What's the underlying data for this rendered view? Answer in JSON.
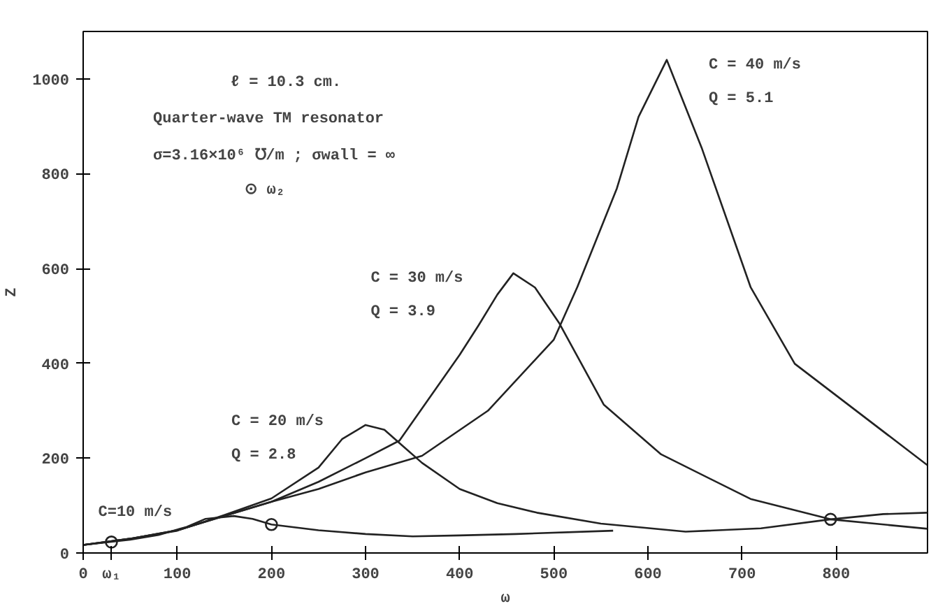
{
  "chart_data": {
    "type": "line",
    "xlabel": "ω",
    "ylabel": "Z",
    "xlim": [
      0,
      897
    ],
    "ylim": [
      0,
      1100
    ],
    "xticks": [
      0,
      {
        "value": 30,
        "label": "ω₁"
      },
      100,
      200,
      300,
      400,
      500,
      600,
      700,
      800
    ],
    "yticks": [
      0,
      200,
      400,
      600,
      800,
      1000
    ],
    "grid": false,
    "legend": false,
    "marker": "none",
    "line_style": "solid",
    "series": [
      {
        "name": "C=10 m/s",
        "color": "#222222",
        "x": [
          0,
          50,
          80,
          110,
          130,
          160,
          180,
          200,
          250,
          300,
          350,
          400,
          460,
          563
        ],
        "values": [
          17,
          28,
          38,
          55,
          72,
          78,
          72,
          60,
          48,
          40,
          35,
          37,
          40,
          47
        ]
      },
      {
        "name": "C = 20 m/s\nQ = 2.8",
        "color": "#222222",
        "x": [
          0,
          50,
          100,
          150,
          200,
          250,
          275,
          300,
          320,
          340,
          360,
          400,
          440,
          482,
          550,
          640,
          720,
          794,
          850,
          897
        ],
        "values": [
          17,
          30,
          47,
          80,
          115,
          180,
          240,
          270,
          260,
          225,
          190,
          135,
          105,
          85,
          62,
          45,
          52,
          71,
          82,
          85
        ]
      },
      {
        "name": "C = 30 m/s\nQ = 3.9",
        "color": "#222222",
        "x": [
          0,
          50,
          100,
          150,
          200,
          250,
          300,
          336,
          400,
          420,
          440,
          457,
          480,
          506,
          553,
          614,
          709,
          794,
          897
        ],
        "values": [
          17,
          30,
          48,
          78,
          108,
          150,
          200,
          237,
          418,
          480,
          545,
          590,
          560,
          484,
          313,
          208,
          114,
          71,
          51
        ]
      },
      {
        "name": "C = 40 m/s\nQ = 5.1",
        "color": "#222222",
        "x": [
          0,
          50,
          100,
          150,
          200,
          250,
          300,
          360,
          430,
          500,
          525,
          567,
          590,
          620,
          657,
          709,
          756,
          897
        ],
        "values": [
          17,
          30,
          48,
          78,
          108,
          135,
          170,
          205,
          300,
          450,
          561,
          769,
          920,
          1040,
          855,
          561,
          399,
          185
        ]
      },
      {
        "type": "scatter",
        "marker": "circle",
        "color": "#222222",
        "x": [
          30,
          200,
          794
        ],
        "values": [
          23,
          60,
          71
        ]
      }
    ],
    "annotations": [
      "ℓ = 10.3 cm.",
      "Quarter-wave TM resonator",
      "σ=3.16×10⁶ ℧/m ;  σwall = ∞",
      "⊙ ω₂"
    ]
  }
}
